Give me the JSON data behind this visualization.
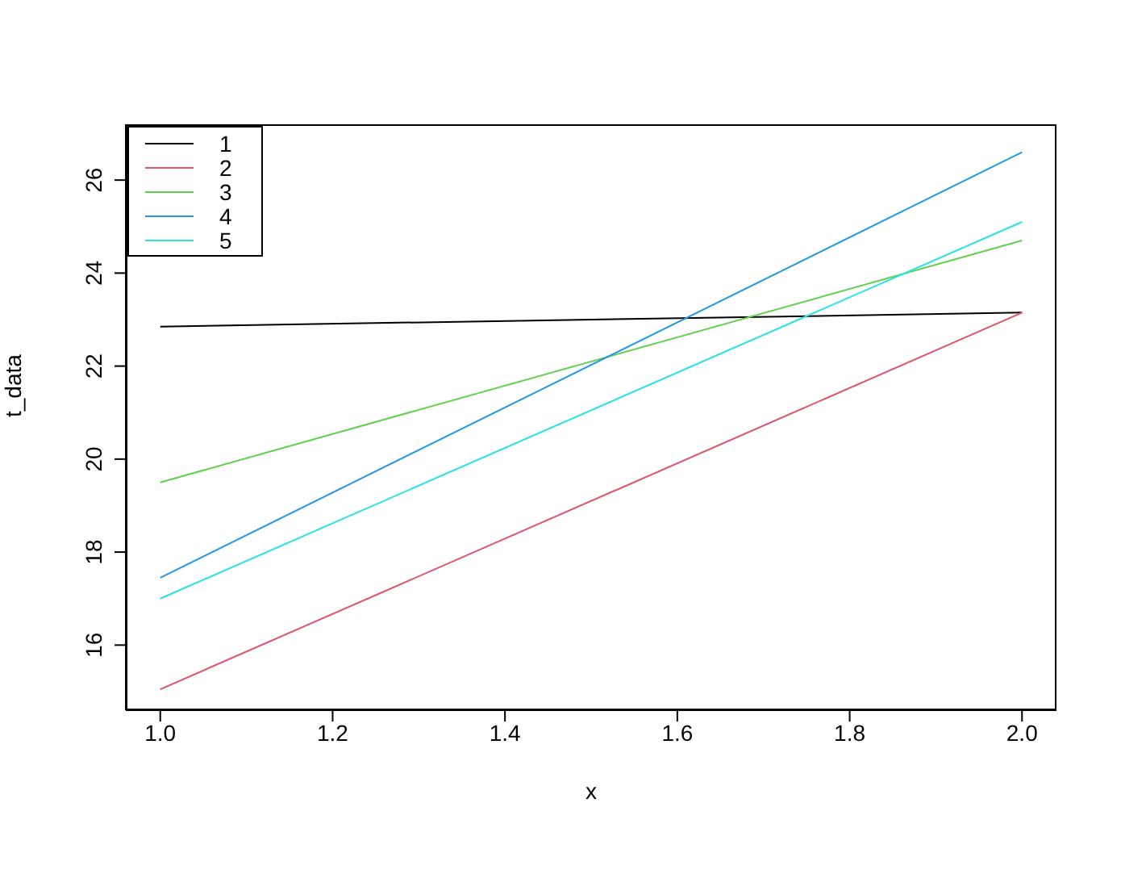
{
  "chart_data": {
    "type": "line",
    "xlabel": "x",
    "ylabel": "t_data",
    "x": [
      1,
      2
    ],
    "xlim": [
      0.96,
      2.04
    ],
    "xticks": [
      {
        "value": 1,
        "label": "1.0"
      },
      1.2,
      1.4,
      1.6,
      1.8,
      {
        "value": 2,
        "label": "2.0"
      }
    ],
    "ylim": [
      14.6,
      27.2
    ],
    "yticks": [
      16,
      18,
      20,
      22,
      24,
      26
    ],
    "series": [
      {
        "name": "1",
        "color": "#000000",
        "values": [
          22.85,
          23.15
        ]
      },
      {
        "name": "2",
        "color": "#df536b",
        "values": [
          15.05,
          23.15
        ]
      },
      {
        "name": "3",
        "color": "#61d04f",
        "values": [
          19.5,
          24.7
        ]
      },
      {
        "name": "4",
        "color": "#2297e6",
        "values": [
          17.45,
          26.6
        ]
      },
      {
        "name": "5",
        "color": "#28e2e5",
        "values": [
          17.0,
          25.1
        ]
      }
    ],
    "legend": "top left",
    "grid": false,
    "marker": "none",
    "line_style": "solid"
  }
}
